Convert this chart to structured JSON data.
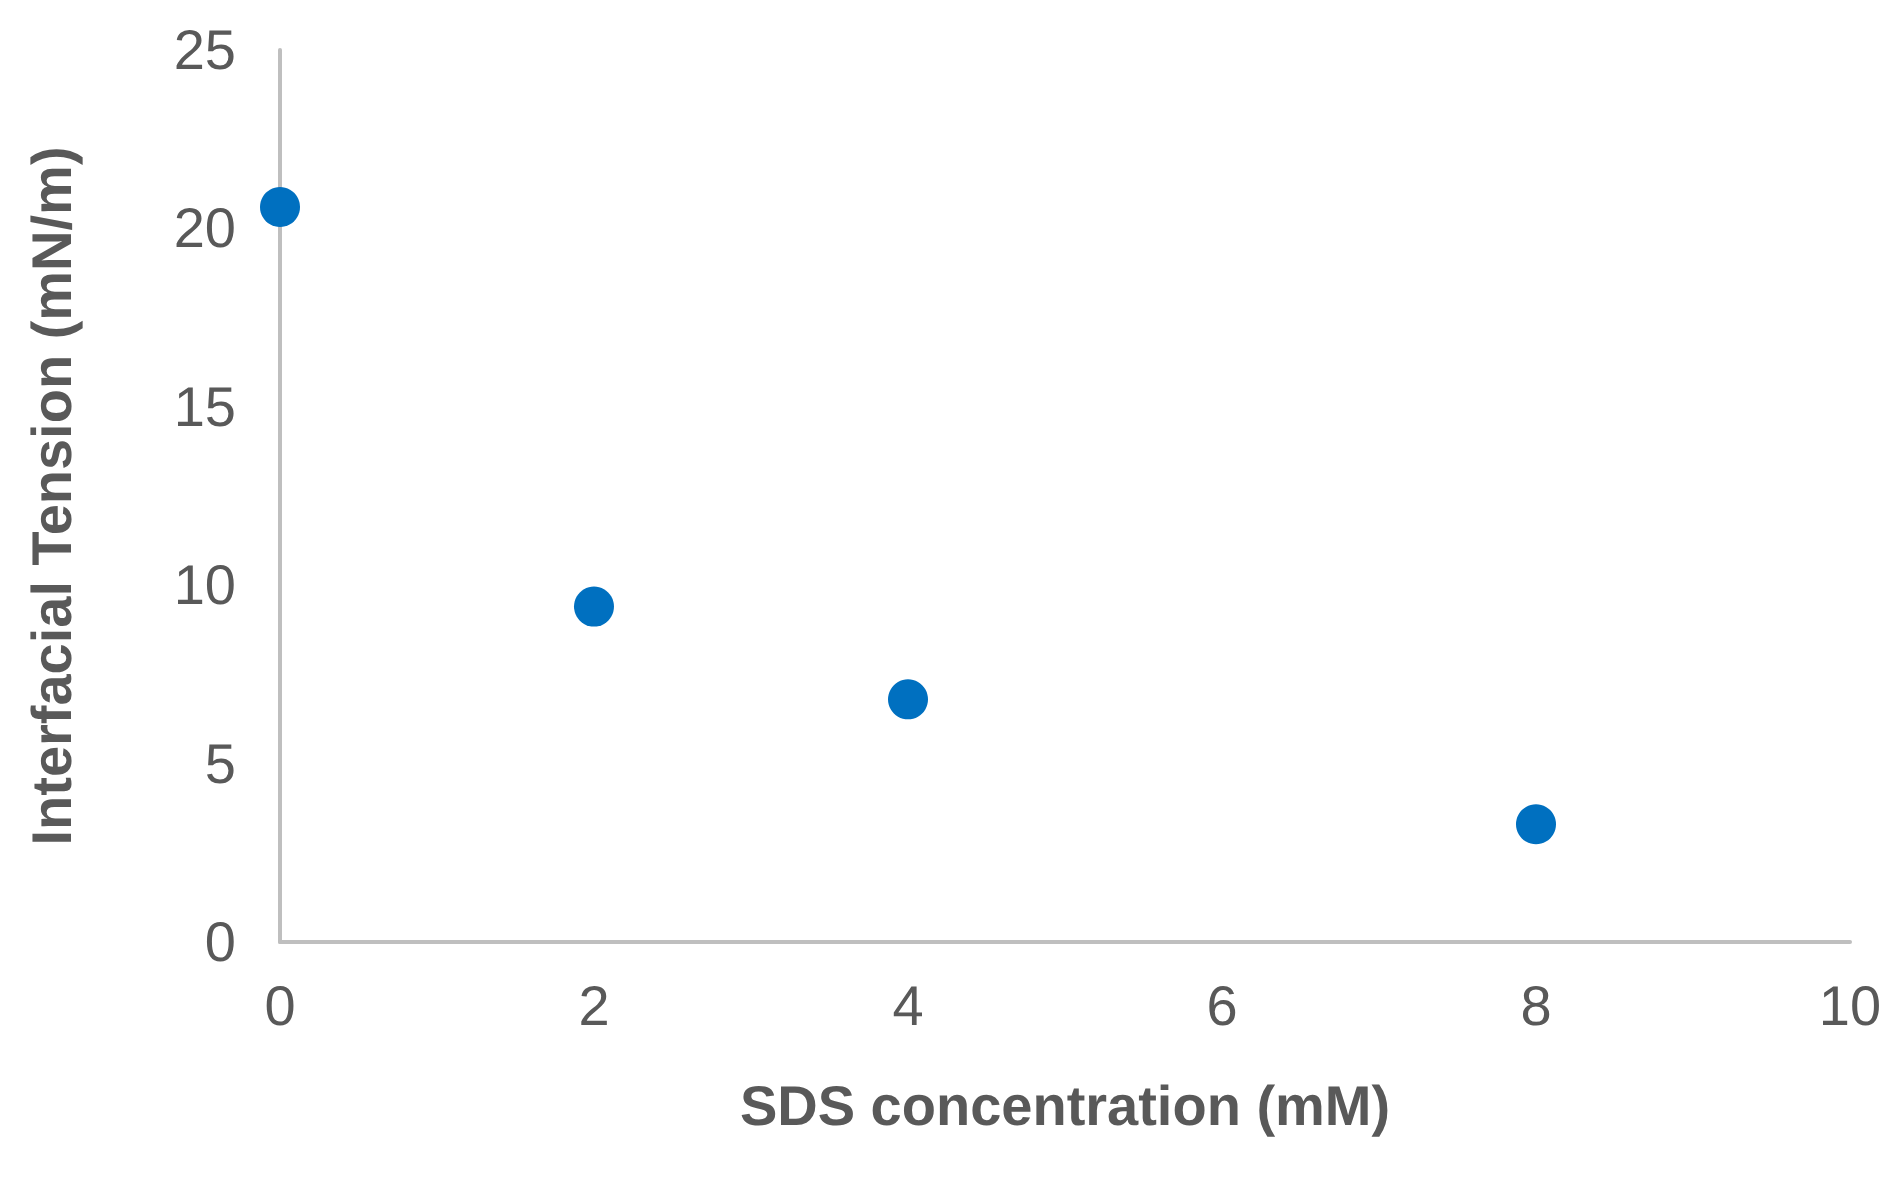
{
  "chart_data": {
    "type": "scatter",
    "xlabel": "SDS concentration (mM)",
    "ylabel": "Interfacial Tension (mN/m)",
    "x": [
      0,
      2,
      4,
      8
    ],
    "series": [
      {
        "color": "#0070c0",
        "values": [
          20.6,
          9.4,
          6.8,
          3.3
        ]
      }
    ],
    "xlim": [
      0,
      10
    ],
    "xticks": [
      0,
      2,
      4,
      6,
      8,
      10
    ],
    "ylim": [
      0,
      25
    ],
    "yticks": [
      0,
      5,
      10,
      15,
      20,
      25
    ],
    "marker": "circle"
  }
}
